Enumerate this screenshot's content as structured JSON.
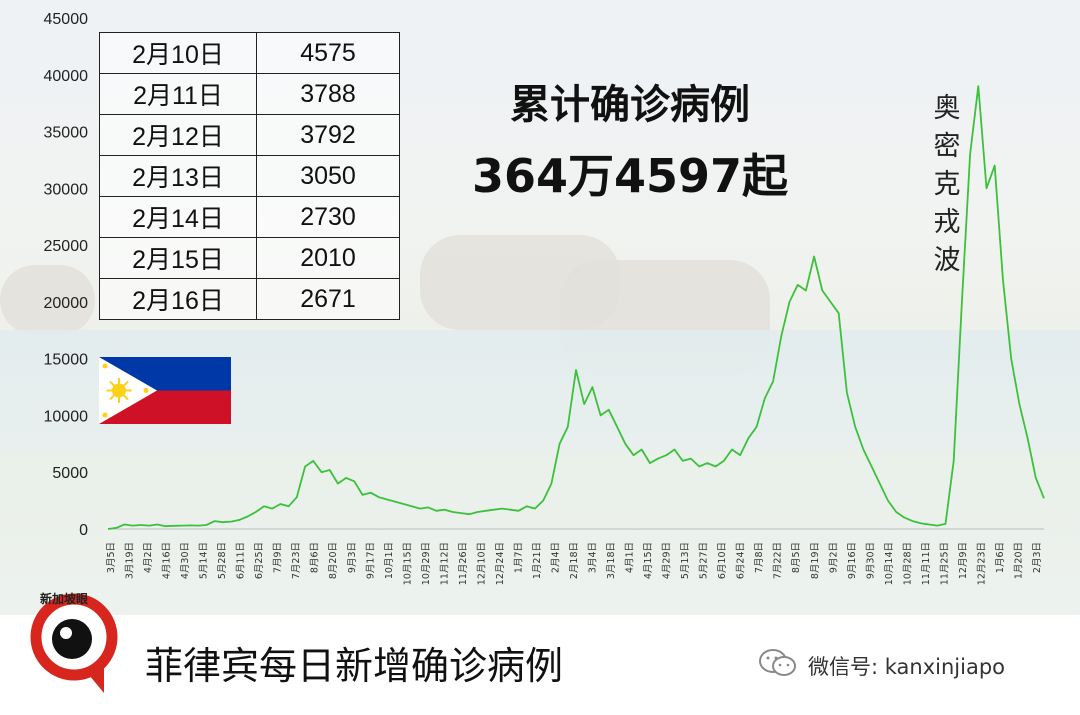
{
  "table": {
    "rows": [
      {
        "date": "2月10日",
        "value": "4575"
      },
      {
        "date": "2月11日",
        "value": "3788"
      },
      {
        "date": "2月12日",
        "value": "3792"
      },
      {
        "date": "2月13日",
        "value": "3050"
      },
      {
        "date": "2月14日",
        "value": "2730"
      },
      {
        "date": "2月15日",
        "value": "2010"
      },
      {
        "date": "2月16日",
        "value": "2671"
      }
    ]
  },
  "headline": {
    "line1": "累计确诊病例",
    "line2": "364万4597起"
  },
  "annotation": "奥密克戎波",
  "footer": {
    "title": "菲律宾每日新增确诊病例",
    "wechat": "微信号: kanxinjiapo",
    "logo_text": "新加坡眼"
  },
  "colors": {
    "line": "#3cc13c",
    "flag_blue": "#0038a8",
    "flag_red": "#ce1126",
    "flag_sun": "#fcd116",
    "logo_red": "#d7261e"
  },
  "chart_data": {
    "type": "line",
    "ylim": [
      0,
      45000
    ],
    "yticks": [
      0,
      5000,
      10000,
      15000,
      20000,
      25000,
      30000,
      35000,
      40000,
      45000
    ],
    "xticks": [
      "3月5日",
      "3月19日",
      "4月2日",
      "4月16日",
      "4月30日",
      "5月14日",
      "5月28日",
      "6月11日",
      "6月25日",
      "7月9日",
      "7月23日",
      "8月6日",
      "8月20日",
      "9月3日",
      "9月17日",
      "10月1日",
      "10月15日",
      "10月29日",
      "11月12日",
      "11月26日",
      "12月10日",
      "12月24日",
      "1月7日",
      "1月21日",
      "2月4日",
      "2月18日",
      "3月4日",
      "3月18日",
      "4月1日",
      "4月15日",
      "4月29日",
      "5月13日",
      "5月27日",
      "6月10日",
      "6月24日",
      "7月8日",
      "7月22日",
      "8月5日",
      "8月19日",
      "9月2日",
      "9月16日",
      "9月30日",
      "10月14日",
      "10月28日",
      "11月11日",
      "11月25日",
      "12月9日",
      "12月23日",
      "1月6日",
      "1月20日",
      "2月3日"
    ],
    "series": [
      {
        "values": [
          0,
          100,
          400,
          300,
          350,
          300,
          400,
          250,
          280,
          300,
          320,
          300,
          350,
          700,
          600,
          650,
          800,
          1100,
          1500,
          2000,
          1800,
          2200,
          2000,
          2800,
          5500,
          6000,
          5000,
          5200,
          4000,
          4500,
          4200,
          3000,
          3200,
          2800,
          2600,
          2400,
          2200,
          2000,
          1800,
          1900,
          1600,
          1700,
          1500,
          1400,
          1300,
          1500,
          1600,
          1700,
          1800,
          1700,
          1600,
          2000,
          1800,
          2500,
          4000,
          7500,
          9000,
          14000,
          11000,
          12500,
          10000,
          10500,
          9000,
          7500,
          6500,
          7000,
          5800,
          6200,
          6500,
          7000,
          6000,
          6200,
          5500,
          5800,
          5500,
          6000,
          7000,
          6500,
          8000,
          9000,
          11500,
          13000,
          17000,
          20000,
          21500,
          21000,
          24000,
          21000,
          20000,
          19000,
          12000,
          9000,
          7000,
          5500,
          4000,
          2500,
          1500,
          1000,
          700,
          500,
          400,
          300,
          450,
          6000,
          20000,
          33000,
          39000,
          30000,
          32000,
          22000,
          15000,
          11000,
          8000,
          4500,
          2700
        ]
      }
    ]
  }
}
